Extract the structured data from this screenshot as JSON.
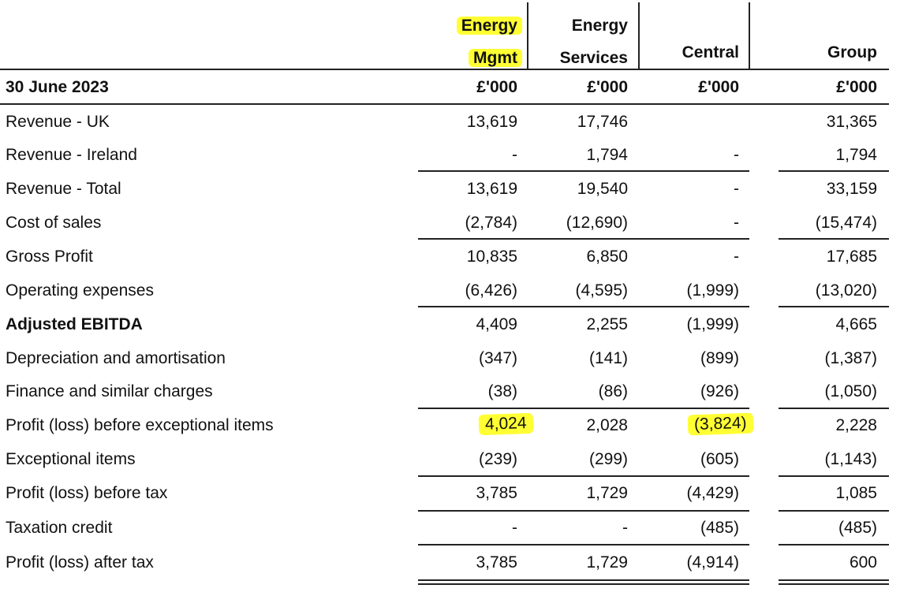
{
  "header": {
    "col1_line1": "Energy",
    "col1_line2": "Mgmt",
    "col2_line1": "Energy",
    "col2_line2": "Services",
    "col3": "Central",
    "col4": "Group"
  },
  "units_row": {
    "label": "30 June 2023",
    "c1": "£'000",
    "c2": "£'000",
    "c3": "£'000",
    "c4": "£'000"
  },
  "rows": [
    {
      "label": "Revenue - UK",
      "c1": "13,619",
      "c2": "17,746",
      "c3": "",
      "c4": "31,365"
    },
    {
      "label": "Revenue - Ireland",
      "c1": "-",
      "c2": "1,794",
      "c3": "-",
      "c4": "1,794"
    },
    {
      "label": "Revenue - Total",
      "c1": "13,619",
      "c2": "19,540",
      "c3": "-",
      "c4": "33,159"
    },
    {
      "label": "Cost of sales",
      "c1": "(2,784)",
      "c2": "(12,690)",
      "c3": "-",
      "c4": "(15,474)"
    },
    {
      "label": "Gross Profit",
      "c1": "10,835",
      "c2": "6,850",
      "c3": "-",
      "c4": "17,685"
    },
    {
      "label": "Operating expenses",
      "c1": "(6,426)",
      "c2": "(4,595)",
      "c3": "(1,999)",
      "c4": "(13,020)"
    },
    {
      "label": "Adjusted EBITDA",
      "c1": "4,409",
      "c2": "2,255",
      "c3": "(1,999)",
      "c4": "4,665"
    },
    {
      "label": "Depreciation and amortisation",
      "c1": "(347)",
      "c2": "(141)",
      "c3": "(899)",
      "c4": "(1,387)"
    },
    {
      "label": "Finance and similar charges",
      "c1": "(38)",
      "c2": "(86)",
      "c3": "(926)",
      "c4": "(1,050)"
    },
    {
      "label": "Profit (loss) before exceptional items",
      "c1": "4,024",
      "c2": "2,028",
      "c3": "(3,824)",
      "c4": "2,228"
    },
    {
      "label": "Exceptional items",
      "c1": "(239)",
      "c2": "(299)",
      "c3": "(605)",
      "c4": "(1,143)"
    },
    {
      "label": "Profit (loss) before tax",
      "c1": "3,785",
      "c2": "1,729",
      "c3": "(4,429)",
      "c4": "1,085"
    },
    {
      "label": "Taxation credit",
      "c1": "-",
      "c2": "-",
      "c3": "(485)",
      "c4": "(485)"
    },
    {
      "label": "Profit (loss) after tax",
      "c1": "3,785",
      "c2": "1,729",
      "c3": "(4,914)",
      "c4": "600"
    }
  ],
  "colors": {
    "highlight": "#ffff33",
    "rule": "#222222"
  }
}
